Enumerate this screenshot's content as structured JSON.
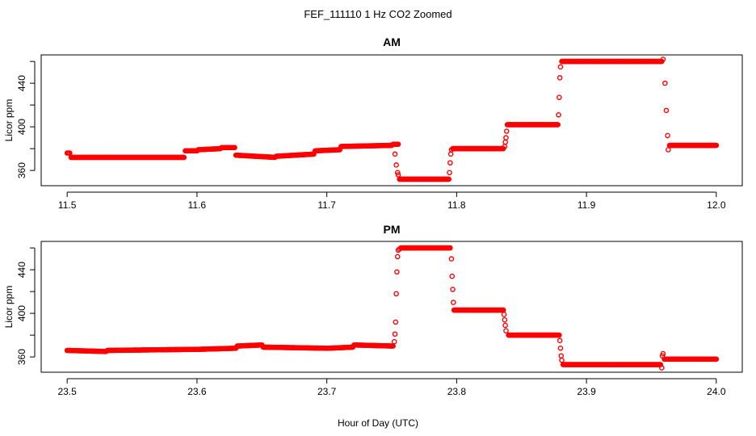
{
  "figure": {
    "title": "FEF_111110  1 Hz CO2 Zoomed",
    "xlabel": "Hour of Day (UTC)"
  },
  "chart_data": [
    {
      "type": "scatter",
      "title": "AM",
      "xlabel": "",
      "ylabel": "Licor ppm",
      "xlim": [
        11.5,
        12.0
      ],
      "ylim": [
        346,
        466
      ],
      "xticks": [
        "11.5",
        "11.6",
        "11.7",
        "11.8",
        "11.9",
        "12.0"
      ],
      "yticks": [
        "360",
        "400",
        "440"
      ],
      "marker": "open-circle",
      "color": "#ff0000",
      "segments": [
        {
          "x": [
            11.5,
            11.502
          ],
          "y": [
            376,
            376
          ]
        },
        {
          "x": [
            11.503,
            11.59
          ],
          "y": [
            372,
            372
          ]
        },
        {
          "x": [
            11.591,
            11.6
          ],
          "y": [
            378,
            378
          ]
        },
        {
          "x": [
            11.601,
            11.618
          ],
          "y": [
            379,
            380
          ]
        },
        {
          "x": [
            11.619,
            11.629
          ],
          "y": [
            381,
            381
          ]
        },
        {
          "x": [
            11.63,
            11.66
          ],
          "y": [
            374,
            372
          ]
        },
        {
          "x": [
            11.661,
            11.69
          ],
          "y": [
            373,
            375
          ]
        },
        {
          "x": [
            11.691,
            11.71
          ],
          "y": [
            378,
            379
          ]
        },
        {
          "x": [
            11.711,
            11.75
          ],
          "y": [
            382,
            383
          ]
        },
        {
          "x": [
            11.751,
            11.755
          ],
          "y": [
            384,
            384
          ]
        },
        {
          "x": [
            11.756,
            11.794
          ],
          "y": [
            352,
            352
          ]
        },
        {
          "x": [
            11.797,
            11.836
          ],
          "y": [
            380,
            380
          ]
        },
        {
          "x": [
            11.839,
            11.878
          ],
          "y": [
            402,
            402
          ]
        },
        {
          "x": [
            11.881,
            11.958
          ],
          "y": [
            460,
            460
          ]
        },
        {
          "x": [
            11.964,
            12.0
          ],
          "y": [
            383,
            383
          ]
        }
      ],
      "transitions": [
        {
          "x": [
            11.7525,
            11.7535,
            11.7545,
            11.755
          ],
          "y": [
            375,
            365,
            358,
            356
          ]
        },
        {
          "x": [
            11.7945,
            11.795,
            11.7955,
            11.796
          ],
          "y": [
            358,
            367,
            375,
            379
          ]
        },
        {
          "x": [
            11.837,
            11.8375,
            11.838,
            11.8385
          ],
          "y": [
            382,
            386,
            390,
            396
          ]
        },
        {
          "x": [
            11.8785,
            11.879,
            11.8795,
            11.88
          ],
          "y": [
            411,
            427,
            445,
            455
          ]
        },
        {
          "x": [
            11.959,
            11.9605,
            11.9615,
            11.9625,
            11.963
          ],
          "y": [
            462,
            440,
            415,
            392,
            379
          ]
        }
      ]
    },
    {
      "type": "scatter",
      "title": "PM",
      "xlabel": "",
      "ylabel": "Licor ppm",
      "xlim": [
        23.5,
        24.0
      ],
      "ylim": [
        346,
        466
      ],
      "xticks": [
        "23.5",
        "23.6",
        "23.7",
        "23.8",
        "23.9",
        "24.0"
      ],
      "yticks": [
        "360",
        "400",
        "440"
      ],
      "marker": "open-circle",
      "color": "#ff0000",
      "segments": [
        {
          "x": [
            23.5,
            23.53
          ],
          "y": [
            366,
            365
          ]
        },
        {
          "x": [
            23.531,
            23.6
          ],
          "y": [
            366,
            367
          ]
        },
        {
          "x": [
            23.601,
            23.63
          ],
          "y": [
            367,
            368
          ]
        },
        {
          "x": [
            23.631,
            23.65
          ],
          "y": [
            370,
            371
          ]
        },
        {
          "x": [
            23.651,
            23.7
          ],
          "y": [
            369,
            368
          ]
        },
        {
          "x": [
            23.701,
            23.72
          ],
          "y": [
            368,
            369
          ]
        },
        {
          "x": [
            23.721,
            23.751
          ],
          "y": [
            371,
            370
          ]
        },
        {
          "x": [
            23.757,
            23.795
          ],
          "y": [
            460,
            460
          ]
        },
        {
          "x": [
            23.798,
            23.836
          ],
          "y": [
            403,
            403
          ]
        },
        {
          "x": [
            23.84,
            23.879
          ],
          "y": [
            380,
            380
          ]
        },
        {
          "x": [
            23.882,
            23.957
          ],
          "y": [
            353,
            353
          ]
        },
        {
          "x": [
            23.96,
            24.0
          ],
          "y": [
            358,
            358
          ]
        }
      ],
      "transitions": [
        {
          "x": [
            23.752,
            23.7525,
            23.753,
            23.7535,
            23.754,
            23.7545,
            23.755,
            23.756
          ],
          "y": [
            374,
            381,
            392,
            418,
            438,
            452,
            458,
            459
          ]
        },
        {
          "x": [
            23.796,
            23.7965,
            23.797,
            23.7975
          ],
          "y": [
            450,
            434,
            422,
            410
          ]
        },
        {
          "x": [
            23.8365,
            23.837,
            23.8375,
            23.838
          ],
          "y": [
            399,
            394,
            389,
            384
          ]
        },
        {
          "x": [
            23.8795,
            23.88,
            23.8805,
            23.881
          ],
          "y": [
            375,
            368,
            361,
            357
          ]
        },
        {
          "x": [
            23.958,
            23.9585,
            23.959
          ],
          "y": [
            350,
            361,
            363
          ]
        }
      ]
    }
  ]
}
